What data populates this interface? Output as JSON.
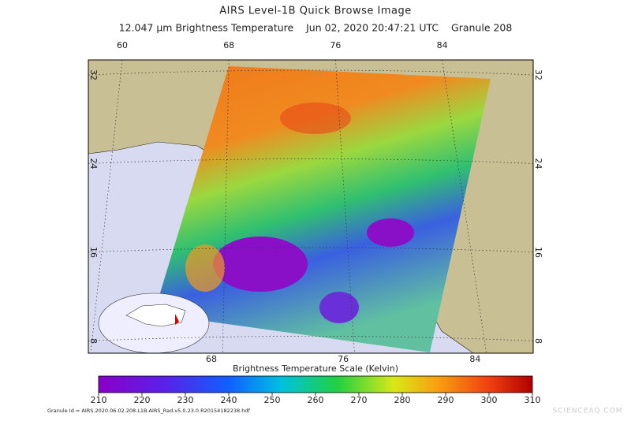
{
  "header": {
    "title": "AIRS Level-1B Quick Browse Image",
    "subtitle": "12.047 μm Brightness Temperature    Jun 02, 2020 20:47:21 UTC    Granule 208"
  },
  "map": {
    "longitudes_top": [
      60,
      68,
      76,
      84
    ],
    "longitudes_bottom": [
      68,
      76,
      84
    ],
    "latitudes": [
      32,
      24,
      16,
      8
    ]
  },
  "colorbar": {
    "title": "Brightness Temperature Scale (Kelvin)",
    "ticks": [
      210,
      220,
      230,
      240,
      250,
      260,
      270,
      280,
      290,
      300,
      310
    ]
  },
  "footer": {
    "granule_id": "Granule Id = AIRS.2020.06.02.208.L1B.AIRS_Rad.v5.0.23.0.R20154182238.hdf"
  },
  "watermark": "SCIENCEAQ.COM"
}
